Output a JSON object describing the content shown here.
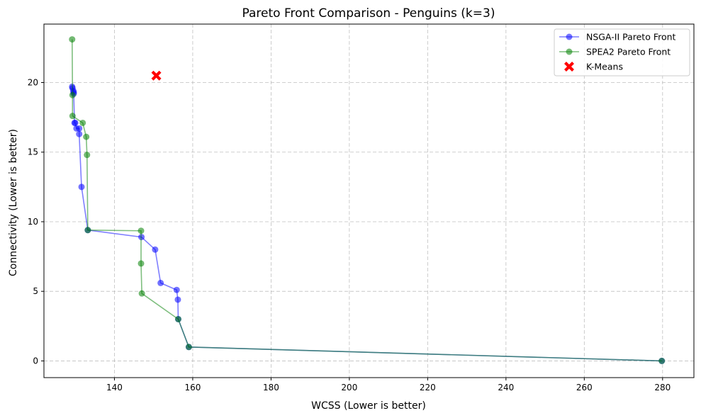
{
  "chart_data": {
    "type": "line",
    "title": "Pareto Front Comparison - Penguins (k=3)",
    "xlabel": "WCSS (Lower is better)",
    "ylabel": "Connectivity (Lower is better)",
    "xlim": [
      122,
      288
    ],
    "ylim": [
      -1.2,
      24.2
    ],
    "xticks": [
      140,
      160,
      180,
      200,
      220,
      240,
      260,
      280
    ],
    "yticks": [
      0,
      5,
      10,
      15,
      20
    ],
    "grid": true,
    "legend_position": "top-right",
    "series": [
      {
        "name": "NSGA-II Pareto Front",
        "color": "#0000ff",
        "marker": "circle",
        "x": [
          129.2,
          129.3,
          129.5,
          129.6,
          129.6,
          129.8,
          130.0,
          130.3,
          131.0,
          131.0,
          131.6,
          133.2,
          146.9,
          150.4,
          151.8,
          155.9,
          156.2,
          156.3,
          159.0,
          279.8
        ],
        "y": [
          19.7,
          19.6,
          19.4,
          19.2,
          19.3,
          17.1,
          17.1,
          16.7,
          16.7,
          16.3,
          12.5,
          9.4,
          8.9,
          8.0,
          5.6,
          5.1,
          4.4,
          3.0,
          1.0,
          0.0
        ]
      },
      {
        "name": "SPEA2 Pareto Front",
        "color": "#008000",
        "marker": "circle",
        "x": [
          129.2,
          129.3,
          129.3,
          131.9,
          132.8,
          133.0,
          133.2,
          146.8,
          146.8,
          147.0,
          156.3,
          159.0,
          279.8
        ],
        "y": [
          23.1,
          19.1,
          17.6,
          17.1,
          16.1,
          14.8,
          9.4,
          9.35,
          7.0,
          4.85,
          3.0,
          1.0,
          0.0
        ]
      },
      {
        "name": "K-Means",
        "color": "#ff0000",
        "marker": "X",
        "x": [
          150.7
        ],
        "y": [
          20.5
        ]
      }
    ]
  }
}
